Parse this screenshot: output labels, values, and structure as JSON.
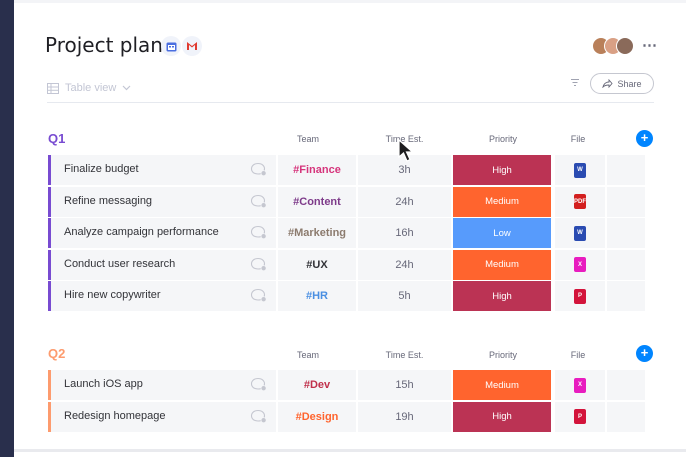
{
  "app": {
    "title": "Project plan",
    "view_label": "Table view",
    "share_label": "Share"
  },
  "icons": {
    "integrations": [
      "calendar-icon",
      "gmail-icon"
    ],
    "more": "⋯"
  },
  "columns": {
    "team": "Team",
    "time": "Time Est.",
    "priority": "Priority",
    "file": "File"
  },
  "groups": [
    {
      "title": "Q1",
      "color": "#784bd1",
      "rows": [
        {
          "name": "Finalize budget",
          "team": "#Finance",
          "team_color": "#d6357c",
          "time": "3h",
          "priority": "High",
          "priority_color": "#bb3354",
          "file": "W",
          "file_color": "#2a4bb1"
        },
        {
          "name": "Refine messaging",
          "team": "#Content",
          "team_color": "#7e3b8a",
          "time": "24h",
          "priority": "Medium",
          "priority_color": "#ff642e",
          "file": "PDF",
          "file_color": "#d31f1f"
        },
        {
          "name": "Analyze campaign performance",
          "team": "#Marketing",
          "team_color": "#8c7b6e",
          "time": "16h",
          "priority": "Low",
          "priority_color": "#579bfc",
          "file": "W",
          "file_color": "#2a4bb1"
        },
        {
          "name": "Conduct user research",
          "team": "#UX",
          "team_color": "#323338",
          "time": "24h",
          "priority": "Medium",
          "priority_color": "#ff642e",
          "file": "X",
          "file_color": "#e81cbf"
        },
        {
          "name": "Hire new copywriter",
          "team": "#HR",
          "team_color": "#4a8fe2",
          "time": "5h",
          "priority": "High",
          "priority_color": "#bb3354",
          "file": "P",
          "file_color": "#d3143b"
        }
      ]
    },
    {
      "title": "Q2",
      "color": "#fd9b6e",
      "rows": [
        {
          "name": "Launch iOS app",
          "team": "#Dev",
          "team_color": "#c0304b",
          "time": "15h",
          "priority": "Medium",
          "priority_color": "#ff642e",
          "file": "X",
          "file_color": "#e81cbf"
        },
        {
          "name": "Redesign homepage",
          "team": "#Design",
          "team_color": "#ff642e",
          "time": "19h",
          "priority": "High",
          "priority_color": "#bb3354",
          "file": "P",
          "file_color": "#d3143b"
        }
      ]
    }
  ]
}
